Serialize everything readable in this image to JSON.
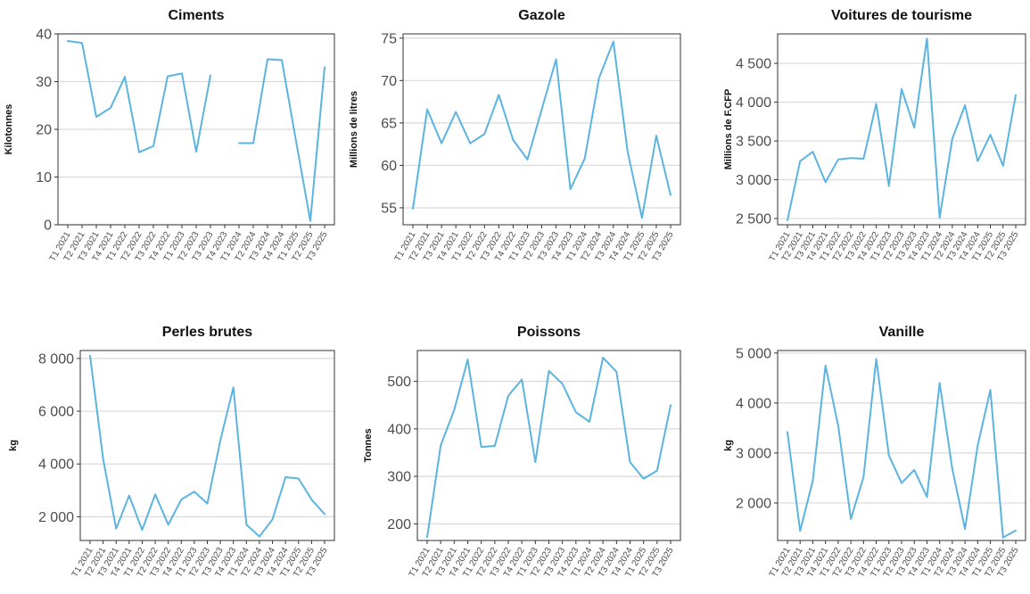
{
  "style": {
    "line_color": "#5bb4e0",
    "grid_color": "#d9d9d9",
    "frame_color": "#333333"
  },
  "chart_data": [
    {
      "type": "line",
      "title": "Ciments",
      "ylabel": "Kilotonnes",
      "ylim": [
        0,
        40
      ],
      "yticks": [
        0,
        10,
        20,
        30,
        40
      ],
      "ytick_labels": [
        "0",
        "10",
        "20",
        "30",
        "40"
      ],
      "grid": true,
      "x": [
        "T1 2021",
        "T2 2021",
        "T3 2021",
        "T4 2021",
        "T1 2022",
        "T2 2022",
        "T3 2022",
        "T4 2022",
        "T1 2023",
        "T2 2023",
        "T3 2023",
        "T4 2023",
        "T1 2024",
        "T2 2024",
        "T3 2024",
        "T4 2024",
        "T1 2025",
        "T2 2025",
        "T3 2025"
      ],
      "values": [
        38.5,
        38.1,
        22.6,
        24.5,
        31.0,
        15.2,
        16.5,
        31.1,
        31.7,
        15.3,
        31.3,
        null,
        17.1,
        17.1,
        34.7,
        34.5,
        17.5,
        0.8,
        33.0
      ]
    },
    {
      "type": "line",
      "title": "Gazole",
      "ylabel": "Millions de litres",
      "ylim": [
        53,
        75.5
      ],
      "yticks": [
        55,
        60,
        65,
        70,
        75
      ],
      "ytick_labels": [
        "55",
        "60",
        "65",
        "70",
        "75"
      ],
      "grid": true,
      "x": [
        "T1 2021",
        "T2 2021",
        "T3 2021",
        "T4 2021",
        "T1 2022",
        "T2 2022",
        "T3 2022",
        "T4 2022",
        "T1 2023",
        "T2 2023",
        "T3 2023",
        "T4 2023",
        "T1 2024",
        "T2 2024",
        "T3 2024",
        "T4 2024",
        "T1 2025",
        "T2 2025",
        "T3 2025"
      ],
      "values": [
        54.9,
        66.6,
        62.6,
        66.3,
        62.6,
        63.7,
        68.3,
        63.0,
        60.7,
        66.6,
        72.5,
        57.2,
        60.8,
        70.3,
        74.6,
        61.6,
        53.8,
        63.5,
        56.5
      ]
    },
    {
      "type": "line",
      "title": "Voitures de tourisme",
      "ylabel": "Millions de F.CFP",
      "ylim": [
        2420,
        4880
      ],
      "yticks": [
        2500,
        3000,
        3500,
        4000,
        4500
      ],
      "ytick_labels": [
        "2 500",
        "3 000",
        "3 500",
        "4 000",
        "4 500"
      ],
      "grid": true,
      "x": [
        "T1 2021",
        "T2 2021",
        "T3 2021",
        "T4 2021",
        "T1 2022",
        "T2 2022",
        "T3 2022",
        "T4 2022",
        "T1 2023",
        "T2 2023",
        "T3 2023",
        "T4 2023",
        "T1 2024",
        "T2 2024",
        "T3 2024",
        "T4 2024",
        "T1 2025",
        "T2 2025",
        "T3 2025"
      ],
      "values": [
        2480,
        3240,
        3360,
        2970,
        3260,
        3280,
        3270,
        3980,
        2920,
        4170,
        3670,
        4820,
        2510,
        3530,
        3960,
        3240,
        3580,
        3180,
        4090
      ]
    },
    {
      "type": "line",
      "title": "Perles brutes",
      "ylabel": "kg",
      "ylim": [
        1100,
        8300
      ],
      "yticks": [
        2000,
        4000,
        6000,
        8000
      ],
      "ytick_labels": [
        "2 000",
        "4 000",
        "6 000",
        "8 000"
      ],
      "grid": true,
      "x": [
        "T1 2021",
        "T2 2021",
        "T3 2021",
        "T4 2021",
        "T1 2022",
        "T2 2022",
        "T3 2022",
        "T4 2022",
        "T1 2023",
        "T2 2023",
        "T3 2023",
        "T4 2023",
        "T1 2024",
        "T2 2024",
        "T3 2024",
        "T4 2024",
        "T1 2025",
        "T2 2025",
        "T3 2025"
      ],
      "values": [
        8100,
        4200,
        1550,
        2800,
        1500,
        2850,
        1700,
        2650,
        2950,
        2500,
        4900,
        6900,
        1700,
        1250,
        1900,
        3500,
        3450,
        2650,
        2100
      ]
    },
    {
      "type": "line",
      "title": "Poissons",
      "ylabel": "Tonnes",
      "ylim": [
        165,
        565
      ],
      "yticks": [
        200,
        300,
        400,
        500
      ],
      "ytick_labels": [
        "200",
        "300",
        "400",
        "500"
      ],
      "grid": true,
      "x": [
        "T1 2021",
        "T2 2021",
        "T3 2021",
        "T4 2021",
        "T1 2022",
        "T2 2022",
        "T3 2022",
        "T4 2022",
        "T1 2023",
        "T2 2023",
        "T3 2023",
        "T4 2023",
        "T1 2024",
        "T2 2024",
        "T3 2024",
        "T4 2024",
        "T1 2025",
        "T2 2025",
        "T3 2025"
      ],
      "values": [
        172,
        365,
        440,
        546,
        362,
        364,
        470,
        504,
        330,
        522,
        495,
        435,
        415,
        550,
        520,
        330,
        295,
        312,
        450
      ]
    },
    {
      "type": "line",
      "title": "Vanille",
      "ylabel": "kg",
      "ylim": [
        1250,
        5050
      ],
      "yticks": [
        2000,
        3000,
        4000,
        5000
      ],
      "ytick_labels": [
        "2 000",
        "3 000",
        "4 000",
        "5 000"
      ],
      "grid": true,
      "x": [
        "T1 2021",
        "T2 2021",
        "T3 2021",
        "T4 2021",
        "T1 2022",
        "T2 2022",
        "T3 2022",
        "T4 2022",
        "T1 2023",
        "T2 2023",
        "T3 2023",
        "T4 2023",
        "T1 2024",
        "T2 2024",
        "T3 2024",
        "T4 2024",
        "T1 2025",
        "T2 2025",
        "T3 2025"
      ],
      "values": [
        3420,
        1440,
        2450,
        4750,
        3550,
        1680,
        2520,
        4880,
        2950,
        2400,
        2660,
        2120,
        4400,
        2680,
        1480,
        3150,
        4260,
        1310,
        1450
      ]
    }
  ]
}
